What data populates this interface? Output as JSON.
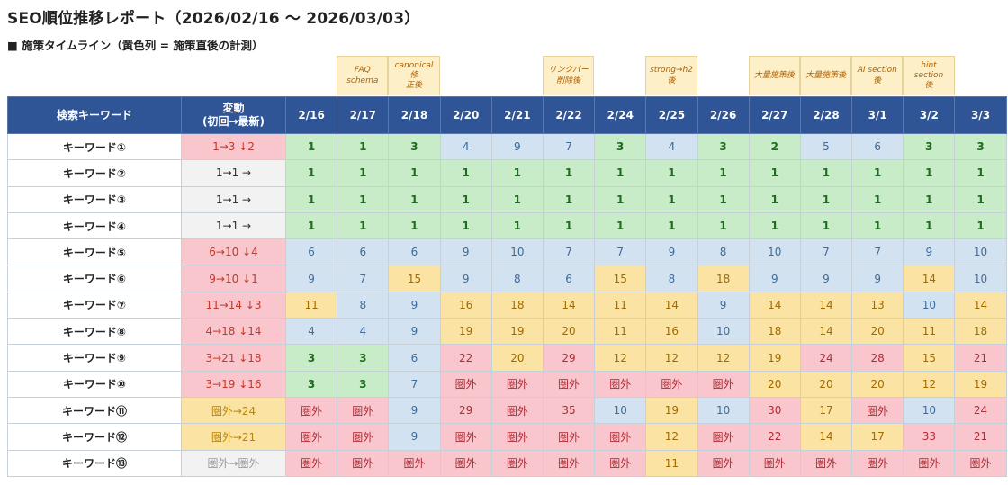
{
  "report": {
    "title": "SEO順位推移レポート（2026/02/16 〜 2026/03/03）",
    "timeline_title": "■ 施策タイムライン（黄色列 = 施策直後の計測）"
  },
  "timeline": [
    "",
    "FAQ\nschema",
    "canonical修\n正後",
    "",
    "",
    "リンクバー\n削除後",
    "",
    "strong→h2\n後",
    "",
    "大量施策後",
    "大量施策後",
    "AI section後",
    "hint section\n後",
    ""
  ],
  "table": {
    "keyword_header": "検索キーワード",
    "change_header": "変動\n(初回→最新)",
    "dates": [
      "2/16",
      "2/17",
      "2/18",
      "2/20",
      "2/21",
      "2/22",
      "2/24",
      "2/25",
      "2/26",
      "2/27",
      "2/28",
      "3/1",
      "3/2",
      "3/3"
    ],
    "rows": [
      {
        "keyword": "キーワード①",
        "change": "1→3 ↓2",
        "change_type": "down",
        "values": [
          "1",
          "1",
          "3",
          "4",
          "9",
          "7",
          "3",
          "4",
          "3",
          "2",
          "5",
          "6",
          "3",
          "3"
        ]
      },
      {
        "keyword": "キーワード②",
        "change": "1→1 →",
        "change_type": "same",
        "values": [
          "1",
          "1",
          "1",
          "1",
          "1",
          "1",
          "1",
          "1",
          "1",
          "1",
          "1",
          "1",
          "1",
          "1"
        ]
      },
      {
        "keyword": "キーワード③",
        "change": "1→1 →",
        "change_type": "same",
        "values": [
          "1",
          "1",
          "1",
          "1",
          "1",
          "1",
          "1",
          "1",
          "1",
          "1",
          "1",
          "1",
          "1",
          "1"
        ]
      },
      {
        "keyword": "キーワード④",
        "change": "1→1 →",
        "change_type": "same",
        "values": [
          "1",
          "1",
          "1",
          "1",
          "1",
          "1",
          "1",
          "1",
          "1",
          "1",
          "1",
          "1",
          "1",
          "1"
        ]
      },
      {
        "keyword": "キーワード⑤",
        "change": "6→10 ↓4",
        "change_type": "down",
        "values": [
          "6",
          "6",
          "6",
          "9",
          "10",
          "7",
          "7",
          "9",
          "8",
          "10",
          "7",
          "7",
          "9",
          "10"
        ]
      },
      {
        "keyword": "キーワード⑥",
        "change": "9→10 ↓1",
        "change_type": "down",
        "values": [
          "9",
          "7",
          "15",
          "9",
          "8",
          "6",
          "15",
          "8",
          "18",
          "9",
          "9",
          "9",
          "14",
          "10"
        ]
      },
      {
        "keyword": "キーワード⑦",
        "change": "11→14 ↓3",
        "change_type": "down",
        "values": [
          "11",
          "8",
          "9",
          "16",
          "18",
          "14",
          "11",
          "14",
          "9",
          "14",
          "14",
          "13",
          "10",
          "14"
        ]
      },
      {
        "keyword": "キーワード⑧",
        "change": "4→18 ↓14",
        "change_type": "down",
        "values": [
          "4",
          "4",
          "9",
          "19",
          "19",
          "20",
          "11",
          "16",
          "10",
          "18",
          "14",
          "20",
          "11",
          "18"
        ]
      },
      {
        "keyword": "キーワード⑨",
        "change": "3→21 ↓18",
        "change_type": "down",
        "values": [
          "3",
          "3",
          "6",
          "22",
          "20",
          "29",
          "12",
          "12",
          "12",
          "19",
          "24",
          "28",
          "15",
          "21"
        ]
      },
      {
        "keyword": "キーワード⑩",
        "change": "3→19 ↓16",
        "change_type": "down",
        "values": [
          "3",
          "3",
          "7",
          "圏外",
          "圏外",
          "圏外",
          "圏外",
          "圏外",
          "圏外",
          "20",
          "20",
          "20",
          "12",
          "19"
        ]
      },
      {
        "keyword": "キーワード⑪",
        "change": "圏外→24",
        "change_type": "new",
        "values": [
          "圏外",
          "圏外",
          "9",
          "29",
          "圏外",
          "35",
          "10",
          "19",
          "10",
          "30",
          "17",
          "圏外",
          "10",
          "24"
        ]
      },
      {
        "keyword": "キーワード⑫",
        "change": "圏外→21",
        "change_type": "new",
        "values": [
          "圏外",
          "圏外",
          "9",
          "圏外",
          "圏外",
          "圏外",
          "圏外",
          "12",
          "圏外",
          "22",
          "14",
          "17",
          "33",
          "21"
        ]
      },
      {
        "keyword": "キーワード⑬",
        "change": "圏外→圏外",
        "change_type": "out",
        "values": [
          "圏外",
          "圏外",
          "圏外",
          "圏外",
          "圏外",
          "圏外",
          "圏外",
          "11",
          "圏外",
          "圏外",
          "圏外",
          "圏外",
          "圏外",
          "圏外"
        ]
      }
    ]
  },
  "colors": {
    "header_bg": "#2f5597",
    "top3": "#c8ecc8",
    "rank4_10": "#d3e2f1",
    "rank11_20": "#fbe3a3",
    "rank21_out": "#f8c6cc",
    "timeline_highlight": "#fdefc7"
  }
}
